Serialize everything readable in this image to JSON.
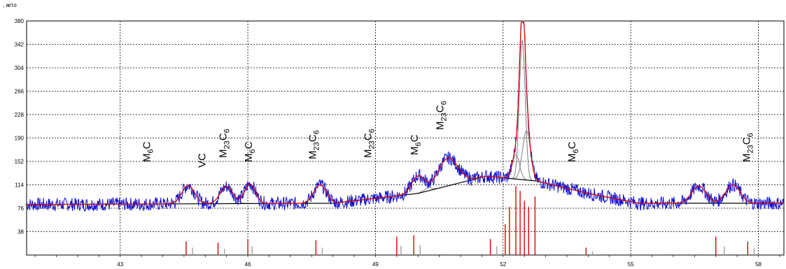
{
  "chart_data": {
    "type": "line",
    "ylabel": ", ᴂᴛᴏ",
    "ylim": [
      0,
      380
    ],
    "xlim": [
      40.8,
      58.6
    ],
    "yticks": [
      "38",
      "76",
      "114",
      "152",
      "190",
      "228",
      "266",
      "304",
      "342",
      "380"
    ],
    "ytick_values": [
      38,
      76,
      114,
      152,
      190,
      228,
      266,
      304,
      342,
      380
    ],
    "xticks": [
      "43",
      "46",
      "49",
      "52",
      "55",
      "58"
    ],
    "xtick_values": [
      43,
      46,
      49,
      52,
      55,
      58
    ],
    "grid": true,
    "colors": {
      "observed": "#1010d0",
      "fit": "#e00000",
      "background": "#000000",
      "component": "#808080",
      "marker_red": "#e00000",
      "marker_grey": "#a0a0a0"
    },
    "annotations": [
      {
        "text": "M6C",
        "main": "M",
        "sub": "6",
        "tail": "C",
        "x": 43.7
      },
      {
        "text": "VC",
        "main": "VC",
        "sub": "",
        "tail": "",
        "x": 45.0
      },
      {
        "text": "M23C6",
        "main": "M",
        "sub": "23",
        "tail": "C",
        "sub2": "6",
        "x": 45.5
      },
      {
        "text": "M6C",
        "main": "M",
        "sub": "6",
        "tail": "C",
        "x": 46.1
      },
      {
        "text": "M23C6",
        "main": "M",
        "sub": "23",
        "tail": "C",
        "sub2": "6",
        "x": 47.6
      },
      {
        "text": "M23C6",
        "main": "M",
        "sub": "23",
        "tail": "C",
        "sub2": "6",
        "x": 48.9
      },
      {
        "text": "M6C",
        "main": "M",
        "sub": "6",
        "tail": "C",
        "x": 50.0
      },
      {
        "text": "M23C6",
        "main": "M",
        "sub": "23",
        "tail": "C",
        "sub2": "6",
        "x": 50.6
      },
      {
        "text": "M6C",
        "main": "M",
        "sub": "6",
        "tail": "C",
        "x": 53.7
      },
      {
        "text": "M23C6",
        "main": "M",
        "sub": "23",
        "tail": "C",
        "sub2": "6",
        "x": 57.8
      }
    ],
    "background_line": [
      [
        40.8,
        82
      ],
      [
        48.0,
        84
      ],
      [
        50.0,
        100
      ],
      [
        51.6,
        128
      ],
      [
        52.8,
        120
      ],
      [
        54.0,
        100
      ],
      [
        55.2,
        84
      ],
      [
        58.6,
        84
      ]
    ],
    "peaks": [
      {
        "x": 44.6,
        "height": 30,
        "width": 0.35
      },
      {
        "x": 45.5,
        "height": 28,
        "width": 0.35
      },
      {
        "x": 46.05,
        "height": 32,
        "width": 0.3
      },
      {
        "x": 47.7,
        "height": 30,
        "width": 0.35
      },
      {
        "x": 50.0,
        "height": 28,
        "width": 0.35
      },
      {
        "x": 50.7,
        "height": 45,
        "width": 0.55
      },
      {
        "x": 52.45,
        "height": 226,
        "width": 0.16
      },
      {
        "x": 52.55,
        "height": 80,
        "width": 0.22
      },
      {
        "x": 52.3,
        "height": 40,
        "width": 0.2
      },
      {
        "x": 56.6,
        "height": 28,
        "width": 0.4
      },
      {
        "x": 57.4,
        "height": 30,
        "width": 0.4
      }
    ],
    "reference_markers": [
      {
        "x": 44.55,
        "height": 22,
        "color": "red"
      },
      {
        "x": 44.7,
        "height": 12,
        "color": "grey"
      },
      {
        "x": 45.3,
        "height": 20,
        "color": "red"
      },
      {
        "x": 45.45,
        "height": 10,
        "color": "grey"
      },
      {
        "x": 46.0,
        "height": 26,
        "color": "red"
      },
      {
        "x": 46.1,
        "height": 14,
        "color": "grey"
      },
      {
        "x": 47.6,
        "height": 24,
        "color": "red"
      },
      {
        "x": 47.75,
        "height": 12,
        "color": "grey"
      },
      {
        "x": 49.5,
        "height": 30,
        "color": "red"
      },
      {
        "x": 49.6,
        "height": 15,
        "color": "grey"
      },
      {
        "x": 49.9,
        "height": 32,
        "color": "red"
      },
      {
        "x": 50.05,
        "height": 16,
        "color": "grey"
      },
      {
        "x": 51.7,
        "height": 26,
        "color": "red"
      },
      {
        "x": 51.85,
        "height": 14,
        "color": "grey"
      },
      {
        "x": 52.05,
        "height": 50,
        "color": "red"
      },
      {
        "x": 52.15,
        "height": 78,
        "color": "red"
      },
      {
        "x": 52.3,
        "height": 112,
        "color": "red"
      },
      {
        "x": 52.4,
        "height": 104,
        "color": "red"
      },
      {
        "x": 52.5,
        "height": 88,
        "color": "red"
      },
      {
        "x": 52.6,
        "height": 78,
        "color": "red"
      },
      {
        "x": 52.75,
        "height": 95,
        "color": "red"
      },
      {
        "x": 53.95,
        "height": 12,
        "color": "red"
      },
      {
        "x": 54.1,
        "height": 6,
        "color": "grey"
      },
      {
        "x": 57.0,
        "height": 30,
        "color": "red"
      },
      {
        "x": 57.2,
        "height": 14,
        "color": "grey"
      },
      {
        "x": 57.75,
        "height": 22,
        "color": "red"
      },
      {
        "x": 57.9,
        "height": 12,
        "color": "grey"
      }
    ]
  }
}
